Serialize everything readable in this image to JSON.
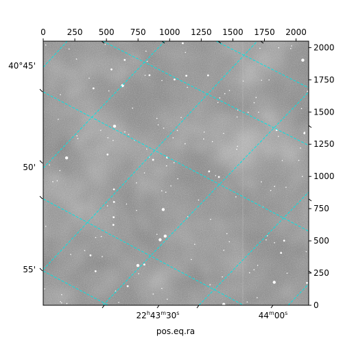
{
  "chart_data": {
    "type": "image",
    "xlabel": "pos.eq.ra",
    "pixel_x": {
      "ticks": [
        0,
        250,
        500,
        750,
        1000,
        1250,
        1500,
        1750,
        2000
      ],
      "labels": [
        "0",
        "250",
        "500",
        "750",
        "1000",
        "1250",
        "1500",
        "1750",
        "2000"
      ],
      "range": [
        0,
        2100
      ]
    },
    "pixel_y": {
      "ticks": [
        0,
        250,
        500,
        750,
        1000,
        1250,
        1500,
        1750,
        2000
      ],
      "labels": [
        "0",
        "250",
        "500",
        "750",
        "1000",
        "1250",
        "1500",
        "1750",
        "2000"
      ],
      "range": [
        0,
        2050
      ]
    },
    "dec_labels": [
      "40°45'",
      "50'",
      "55'"
    ],
    "ra_labels": [
      {
        "h": "22",
        "m": "43",
        "s": "30",
        "parts": [
          "22",
          "h",
          "43",
          "m",
          "30",
          "s"
        ]
      },
      {
        "m": "44",
        "s": "00",
        "parts": [
          "44",
          "m",
          "00",
          "s"
        ]
      }
    ],
    "grid": true,
    "grid_color": "#00e5e5",
    "image_colormap": "grayscale"
  }
}
